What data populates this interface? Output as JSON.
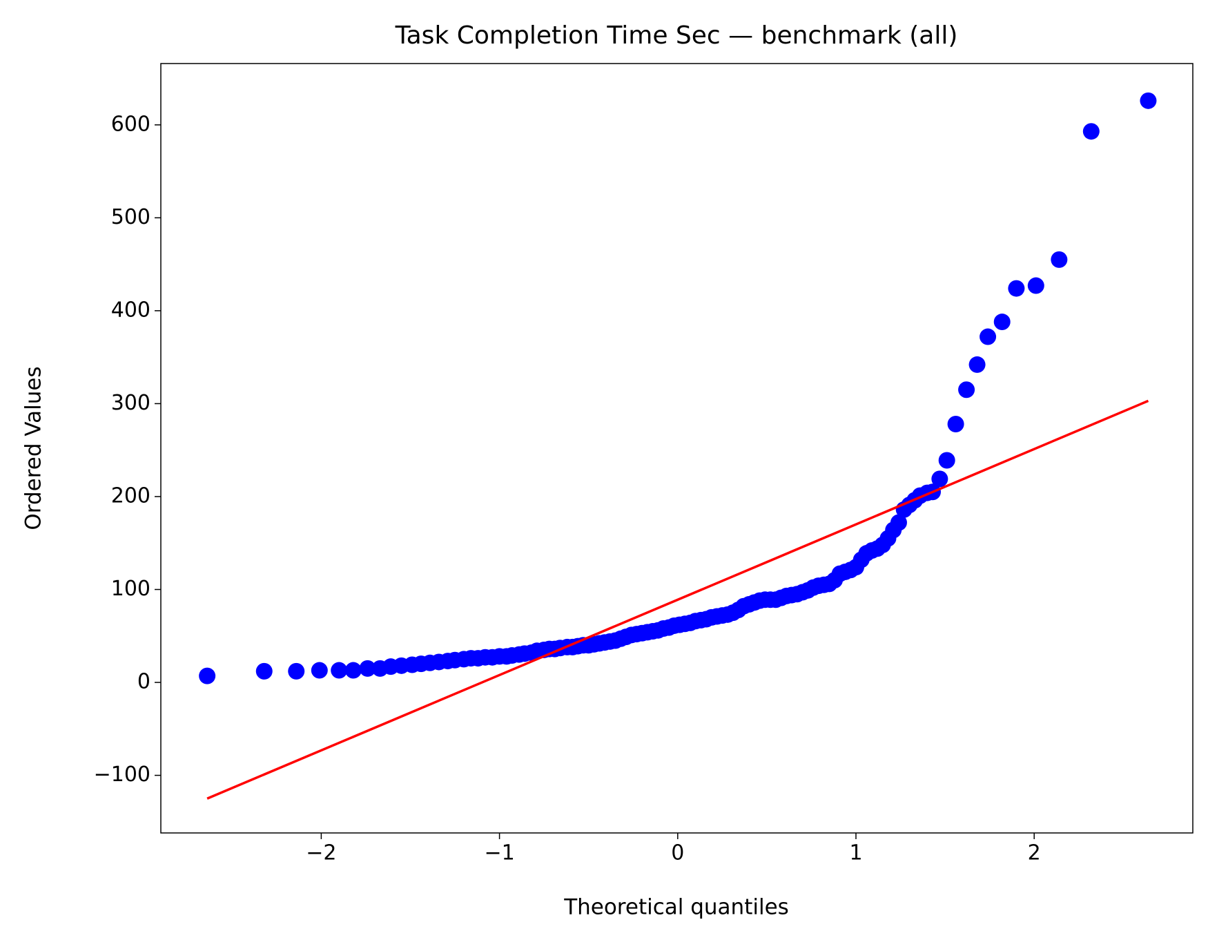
{
  "chart_data": {
    "type": "qq",
    "title": "Task Completion Time Sec — benchmark (all)",
    "xlabel": "Theoretical quantiles",
    "ylabel": "Ordered Values",
    "xlim": [
      -2.9,
      2.89
    ],
    "ylim": [
      -162,
      666
    ],
    "xticks": [
      {
        "value": -2,
        "label": "−2"
      },
      {
        "value": -1,
        "label": "−1"
      },
      0,
      1,
      2
    ],
    "yticks": [
      {
        "value": -100,
        "label": "−100"
      },
      0,
      100,
      200,
      300,
      400,
      500,
      600
    ],
    "grid": false,
    "points": {
      "color": "#0000ff",
      "x": [
        -2.64,
        -2.32,
        -2.14,
        -2.01,
        -1.9,
        -1.82,
        -1.74,
        -1.67,
        -1.61,
        -1.55,
        -1.49,
        -1.44,
        -1.39,
        -1.34,
        -1.29,
        -1.25,
        -1.2,
        -1.16,
        -1.12,
        -1.08,
        -1.04,
        -1.0,
        -0.96,
        -0.93,
        -0.89,
        -0.86,
        -0.82,
        -0.79,
        -0.75,
        -0.72,
        -0.69,
        -0.66,
        -0.62,
        -0.59,
        -0.56,
        -0.53,
        -0.5,
        -0.47,
        -0.44,
        -0.41,
        -0.38,
        -0.35,
        -0.32,
        -0.29,
        -0.26,
        -0.23,
        -0.2,
        -0.17,
        -0.14,
        -0.11,
        -0.08,
        -0.05,
        -0.02,
        0.01,
        0.04,
        0.07,
        0.1,
        0.13,
        0.16,
        0.19,
        0.22,
        0.25,
        0.28,
        0.31,
        0.34,
        0.37,
        0.4,
        0.43,
        0.46,
        0.49,
        0.52,
        0.55,
        0.58,
        0.61,
        0.64,
        0.67,
        0.7,
        0.73,
        0.76,
        0.79,
        0.82,
        0.85,
        0.88,
        0.91,
        0.94,
        0.97,
        1.0,
        1.03,
        1.06,
        1.09,
        1.12,
        1.15,
        1.18,
        1.21,
        1.24,
        1.27,
        1.3,
        1.33,
        1.36,
        1.4,
        1.43,
        1.47,
        1.51,
        1.56,
        1.62,
        1.68,
        1.74,
        1.82,
        1.9,
        2.01,
        2.14,
        2.32,
        2.64
      ],
      "y": [
        7,
        12,
        12,
        13,
        13,
        13,
        15,
        15,
        17,
        18,
        19,
        20,
        21,
        22,
        23,
        24,
        25,
        26,
        26,
        27,
        27,
        28,
        28,
        29,
        30,
        31,
        32,
        34,
        35,
        36,
        36,
        37,
        38,
        38,
        39,
        40,
        40,
        41,
        42,
        43,
        44,
        45,
        47,
        49,
        51,
        52,
        53,
        54,
        55,
        56,
        58,
        59,
        61,
        62,
        63,
        64,
        66,
        67,
        68,
        70,
        71,
        72,
        73,
        75,
        78,
        82,
        84,
        86,
        88,
        89,
        89,
        89,
        91,
        93,
        94,
        95,
        97,
        99,
        102,
        104,
        105,
        106,
        110,
        117,
        119,
        121,
        124,
        132,
        139,
        142,
        144,
        148,
        155,
        164,
        172,
        186,
        191,
        196,
        201,
        204,
        205,
        219,
        239,
        278,
        315,
        342,
        372,
        388,
        424,
        427,
        455,
        593,
        626
      ]
    },
    "fit_line": {
      "color": "#ff0000",
      "x": [
        -2.64,
        2.64
      ],
      "y": [
        -125,
        303
      ]
    }
  }
}
